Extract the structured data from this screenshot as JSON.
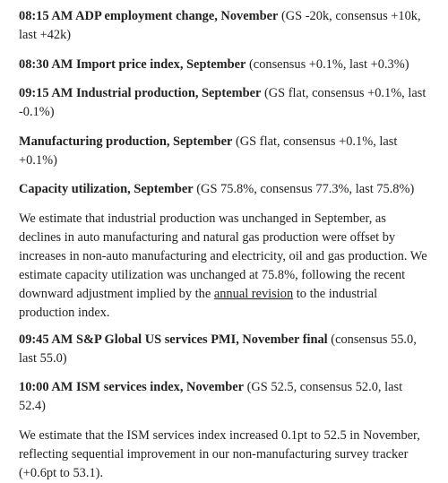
{
  "items": [
    {
      "bold": "08:15 AM ADP employment change, November",
      "text": "(GS -20k, consensus +10k, last +42k)"
    },
    {
      "bold": "08:30 AM Import price index, September",
      "text": "(consensus +0.1%, last +0.3%)"
    },
    {
      "bold": "09:15 AM Industrial production, September",
      "text": "(GS flat, consensus +0.1%, last -0.1%)"
    },
    {
      "bold": "Manufacturing production, September",
      "text": "(GS flat, consensus +0.1%, last +0.1%)"
    },
    {
      "bold": "Capacity utilization, September",
      "text": "(GS 75.8%, consensus 77.3%, last 75.8%)"
    }
  ],
  "paragraph_1": {
    "text_before": "We estimate that industrial production was unchanged in September, as declines in auto manufacturing and natural gas production were offset by increases in non-auto manufacturing and electricity, oil and gas production. We estimate capacity utilization was unchanged at 75.8%, following the recent downward adjustment implied by the",
    "link": "annual revision",
    "text_after": "to the industrial production index."
  },
  "items_2": [
    {
      "bold": "09:45 AM S&P Global US services PMI, November final",
      "text": "(consensus 55.0, last 55.0)"
    },
    {
      "bold": "10:00 AM ISM services index, November",
      "text": "(GS 52.5, consensus 52.0, last 52.4)"
    }
  ],
  "paragraph_2": {
    "text": "We estimate that the ISM services index increased 0.1pt to 52.5 in November, reflecting sequential improvement in our non-manufacturing survey tracker (+0.6pt to 53.1)."
  }
}
